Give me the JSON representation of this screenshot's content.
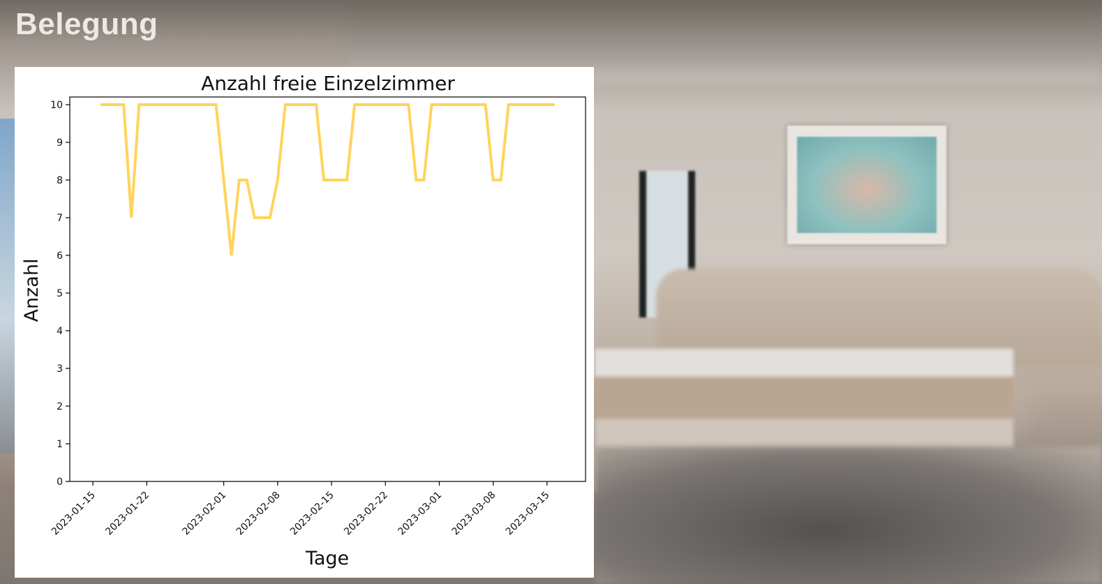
{
  "header": {
    "title": "Belegung"
  },
  "colors": {
    "line": "#ffd45c",
    "frame": "#000000",
    "title_text": "#ece8e4"
  },
  "chart_data": {
    "type": "line",
    "title": "Anzahl freie Einzelzimmer",
    "xlabel": "Tage",
    "ylabel": "Anzahl",
    "ylim": [
      0,
      10
    ],
    "yticks": [
      0,
      1,
      2,
      3,
      4,
      5,
      6,
      7,
      8,
      9,
      10
    ],
    "xlim": [
      "2023-01-12",
      "2023-03-20"
    ],
    "xticks": [
      "2023-01-15",
      "2023-01-22",
      "2023-02-01",
      "2023-02-08",
      "2023-02-15",
      "2023-02-22",
      "2023-03-01",
      "2023-03-08",
      "2023-03-15"
    ],
    "grid": false,
    "legend": "none",
    "series": [
      {
        "color": "#ffd45c",
        "points": [
          [
            "2023-01-16",
            10
          ],
          [
            "2023-01-19",
            10
          ],
          [
            "2023-01-20",
            7
          ],
          [
            "2023-01-21",
            10
          ],
          [
            "2023-01-31",
            10
          ],
          [
            "2023-02-02",
            6
          ],
          [
            "2023-02-03",
            8
          ],
          [
            "2023-02-04",
            8
          ],
          [
            "2023-02-05",
            7
          ],
          [
            "2023-02-07",
            7
          ],
          [
            "2023-02-08",
            8
          ],
          [
            "2023-02-09",
            10
          ],
          [
            "2023-02-13",
            10
          ],
          [
            "2023-02-14",
            8
          ],
          [
            "2023-02-17",
            8
          ],
          [
            "2023-02-18",
            10
          ],
          [
            "2023-02-25",
            10
          ],
          [
            "2023-02-26",
            8
          ],
          [
            "2023-02-27",
            8
          ],
          [
            "2023-02-28",
            10
          ],
          [
            "2023-03-07",
            10
          ],
          [
            "2023-03-08",
            8
          ],
          [
            "2023-03-09",
            8
          ],
          [
            "2023-03-10",
            10
          ],
          [
            "2023-03-16",
            10
          ]
        ]
      }
    ]
  }
}
